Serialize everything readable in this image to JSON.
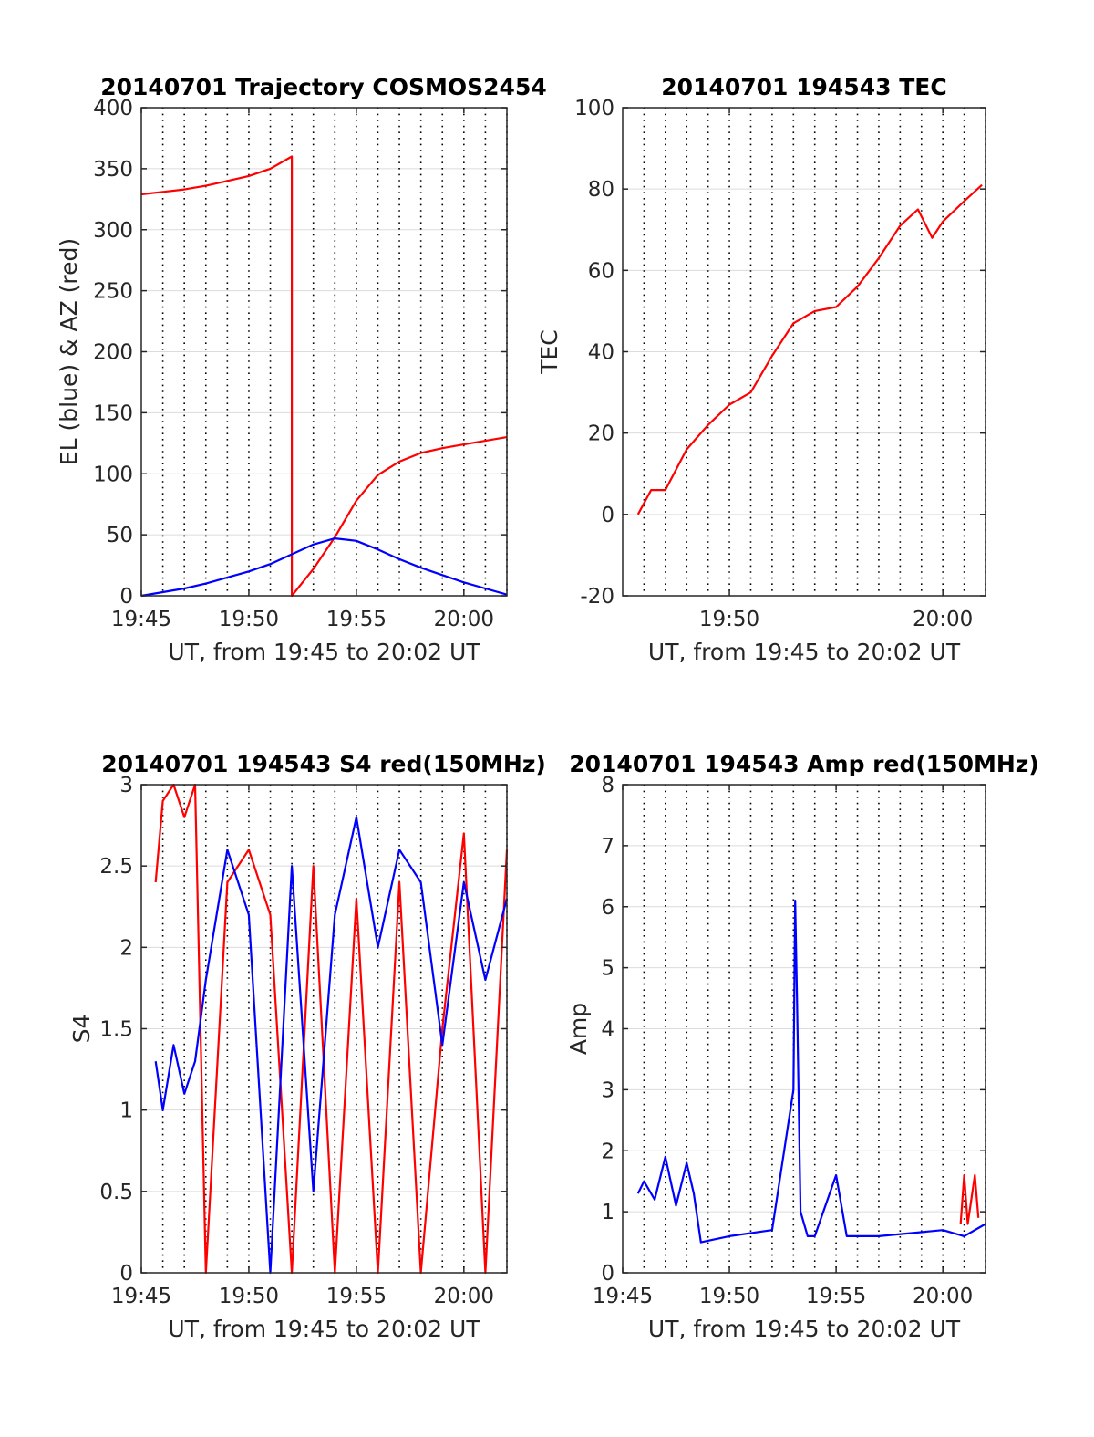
{
  "colors": {
    "red": "#ff0000",
    "blue": "#0000ff",
    "grid": "#dcdcdc",
    "axis": "#262626"
  },
  "chart_data": [
    {
      "type": "line",
      "title": "20140701 Trajectory COSMOS2454",
      "xlabel": "UT, from 19:45 to 20:02 UT",
      "ylabel": "EL (blue) & AZ (red)",
      "xlim": [
        "19:45",
        "20:02"
      ],
      "ylim": [
        0,
        400
      ],
      "xticks": [
        "19:45",
        "19:50",
        "19:55",
        "20:00"
      ],
      "yticks": [
        0,
        50,
        100,
        150,
        200,
        250,
        300,
        350,
        400
      ],
      "grid": true,
      "series": [
        {
          "color": "#ff0000",
          "x": [
            "19:45",
            "19:46",
            "19:47",
            "19:48",
            "19:49",
            "19:50",
            "19:51",
            "19:52",
            "19:52",
            "19:53",
            "19:54",
            "19:55",
            "19:56",
            "19:57",
            "19:58",
            "19:59",
            "20:00",
            "20:01",
            "20:02"
          ],
          "y": [
            329,
            331,
            333,
            336,
            340,
            344,
            350,
            360,
            0,
            22,
            48,
            78,
            99,
            110,
            117,
            121,
            124,
            127,
            130
          ]
        },
        {
          "color": "#0000ff",
          "x": [
            "19:45",
            "19:46",
            "19:47",
            "19:48",
            "19:49",
            "19:50",
            "19:51",
            "19:52",
            "19:53",
            "19:54",
            "19:55",
            "19:56",
            "19:57",
            "19:58",
            "19:59",
            "20:00",
            "20:01",
            "20:02"
          ],
          "y": [
            0,
            3,
            6,
            10,
            15,
            20,
            26,
            34,
            42,
            47,
            45,
            38,
            30,
            23,
            17,
            11,
            6,
            1
          ]
        }
      ]
    },
    {
      "type": "line",
      "title": "20140701 194543 TEC",
      "xlabel": "UT, from 19:45 to 20:02 UT",
      "ylabel": "TEC",
      "xlim": [
        "19:45",
        "20:02"
      ],
      "ylim": [
        -20,
        100
      ],
      "xticks": [
        "19:50",
        "20:00"
      ],
      "yticks": [
        -20,
        0,
        20,
        40,
        60,
        80,
        100
      ],
      "grid": true,
      "series": [
        {
          "color": "#ff0000",
          "x": [
            "19:45:43",
            "19:46:20",
            "19:47",
            "19:48",
            "19:49",
            "19:50",
            "19:51",
            "19:52",
            "19:53",
            "19:54",
            "19:55",
            "19:56",
            "19:57",
            "19:58",
            "19:58:50",
            "19:59:30",
            "20:00",
            "20:01",
            "20:01:50"
          ],
          "y": [
            0,
            6,
            6,
            16,
            22,
            27,
            30,
            39,
            47,
            50,
            51,
            56,
            63,
            71,
            75,
            68,
            72,
            77,
            81
          ]
        }
      ]
    },
    {
      "type": "line",
      "title": "20140701 194543 S4 red(150MHz)",
      "xlabel": "UT, from 19:45 to 20:02 UT",
      "ylabel": "S4",
      "xlim": [
        "19:45",
        "20:02"
      ],
      "ylim": [
        0,
        3
      ],
      "xticks": [
        "19:45",
        "19:50",
        "19:55",
        "20:00"
      ],
      "yticks": [
        0,
        0.5,
        1,
        1.5,
        2,
        2.5,
        3
      ],
      "grid": true,
      "series": [
        {
          "color": "#ff0000",
          "x": [
            "19:45:40",
            "19:46",
            "19:46:30",
            "19:47",
            "19:47:30",
            "19:48",
            "19:49",
            "19:50",
            "19:51",
            "19:52",
            "19:53",
            "19:54",
            "19:55",
            "19:56",
            "19:57",
            "19:58",
            "19:59",
            "20:00",
            "20:01",
            "20:02"
          ],
          "y": [
            2.4,
            2.9,
            3.0,
            2.8,
            3.0,
            0.0,
            2.4,
            2.6,
            2.2,
            0.0,
            2.5,
            0.0,
            2.3,
            0.0,
            2.4,
            0.0,
            1.5,
            2.7,
            0.0,
            2.6
          ]
        },
        {
          "color": "#0000ff",
          "x": [
            "19:45:40",
            "19:46",
            "19:46:30",
            "19:47",
            "19:47:30",
            "19:48",
            "19:49",
            "19:50",
            "19:51",
            "19:52",
            "19:53",
            "19:54",
            "19:55",
            "19:56",
            "19:57",
            "19:58",
            "19:59",
            "20:00",
            "20:01",
            "20:02"
          ],
          "y": [
            1.3,
            1.0,
            1.4,
            1.1,
            1.3,
            1.8,
            2.6,
            2.2,
            0.0,
            2.5,
            0.5,
            2.2,
            2.8,
            2.0,
            2.6,
            2.4,
            1.4,
            2.4,
            1.8,
            2.3
          ]
        }
      ]
    },
    {
      "type": "line",
      "title": "20140701 194543 Amp red(150MHz)",
      "xlabel": "UT, from 19:45 to 20:02 UT",
      "ylabel": "Amp",
      "xlim": [
        "19:45",
        "20:02"
      ],
      "ylim": [
        0,
        8
      ],
      "xticks": [
        "19:45",
        "19:50",
        "19:55",
        "20:00"
      ],
      "yticks": [
        0,
        1,
        2,
        3,
        4,
        5,
        6,
        7,
        8
      ],
      "grid": true,
      "series": [
        {
          "color": "#ff0000",
          "x": [
            "20:00:50",
            "20:01",
            "20:01:10",
            "20:01:20",
            "20:01:30",
            "20:01:40"
          ],
          "y": [
            0.8,
            1.6,
            0.8,
            1.2,
            1.6,
            0.9
          ]
        },
        {
          "color": "#0000ff",
          "x": [
            "19:45:43",
            "19:46",
            "19:46:30",
            "19:47",
            "19:47:30",
            "19:48",
            "19:48:20",
            "19:48:40",
            "19:50",
            "19:52",
            "19:53",
            "19:53:05",
            "19:53:10",
            "19:53:20",
            "19:53:40",
            "19:54",
            "19:55",
            "19:55:30",
            "19:57",
            "20:00",
            "20:01",
            "20:02"
          ],
          "y": [
            1.3,
            1.5,
            1.2,
            1.9,
            1.1,
            1.8,
            1.3,
            0.5,
            0.6,
            0.7,
            3.0,
            6.1,
            4.5,
            1.0,
            0.6,
            0.6,
            1.6,
            0.6,
            0.6,
            0.7,
            0.6,
            0.8
          ]
        }
      ]
    }
  ]
}
